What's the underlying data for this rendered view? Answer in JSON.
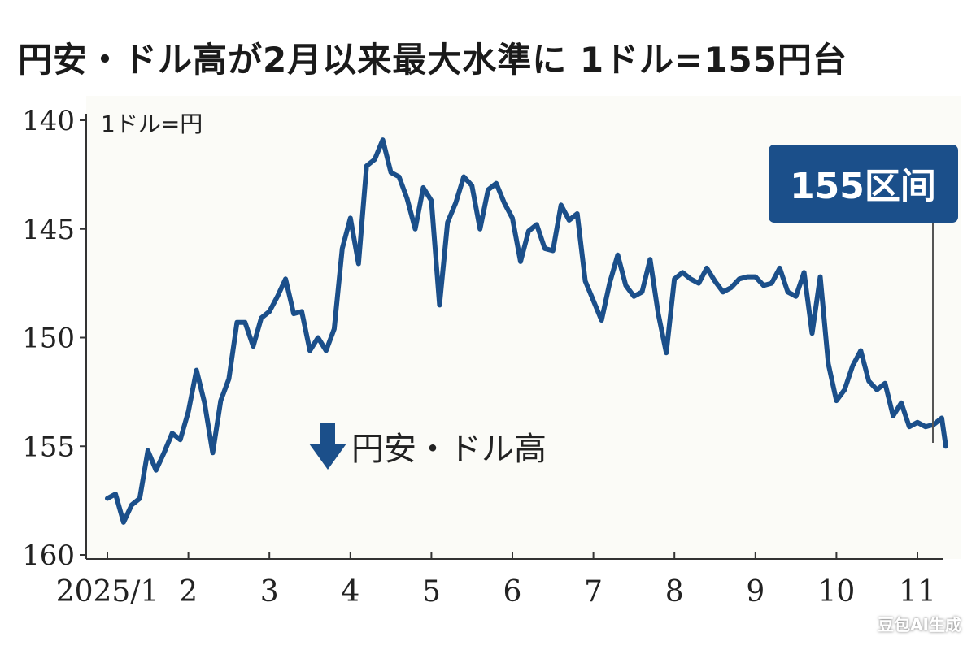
{
  "title": "円安・ドル高が2月以来最大水準に 1ドル=155円台",
  "chart_data": {
    "type": "line",
    "unit_label": "1ドル=円",
    "y_ticks": [
      "140",
      "145",
      "150",
      "155",
      "160"
    ],
    "ylim": [
      140,
      160
    ],
    "y_inverted": true,
    "x_ticks": [
      "2025/1",
      "2",
      "3",
      "4",
      "5",
      "6",
      "7",
      "8",
      "9",
      "10",
      "11"
    ],
    "callout": "155区间",
    "annotation": "円安・ドル高",
    "line_color": "#1b4f8a",
    "series": [
      {
        "x": [
          1.0,
          1.1,
          1.2,
          1.3,
          1.4,
          1.5,
          1.6,
          1.7,
          1.8,
          1.9,
          2.0,
          2.1,
          2.2,
          2.3,
          2.4,
          2.5,
          2.6,
          2.7,
          2.8,
          2.9,
          3.0,
          3.1,
          3.2,
          3.3,
          3.4,
          3.5,
          3.6,
          3.7,
          3.8,
          3.9,
          4.0,
          4.1,
          4.2,
          4.3,
          4.4,
          4.5,
          4.6,
          4.7,
          4.8,
          4.9,
          5.0,
          5.1,
          5.2,
          5.3,
          5.4,
          5.5,
          5.6,
          5.7,
          5.8,
          5.9,
          6.0,
          6.1,
          6.2,
          6.3,
          6.4,
          6.5,
          6.6,
          6.7,
          6.8,
          6.9,
          7.0,
          7.1,
          7.2,
          7.3,
          7.4,
          7.5,
          7.6,
          7.7,
          7.8,
          7.9,
          8.0,
          8.1,
          8.2,
          8.3,
          8.4,
          8.5,
          8.6,
          8.7,
          8.8,
          8.9,
          9.0,
          9.1,
          9.2,
          9.3,
          9.4,
          9.5,
          9.6,
          9.7,
          9.8,
          9.9,
          10.0,
          10.1,
          10.2,
          10.3,
          10.4,
          10.5,
          10.6,
          10.7,
          10.8,
          10.9,
          11.0,
          11.1,
          11.2,
          11.3,
          11.35
        ],
        "values": [
          157.4,
          157.2,
          158.5,
          157.7,
          157.4,
          155.2,
          156.1,
          155.3,
          154.4,
          154.7,
          153.4,
          151.5,
          153.0,
          155.3,
          152.9,
          151.9,
          149.3,
          149.3,
          150.4,
          149.1,
          148.8,
          148.1,
          147.3,
          148.9,
          148.8,
          150.6,
          150.0,
          150.6,
          149.6,
          145.9,
          144.5,
          146.6,
          142.1,
          141.8,
          140.9,
          142.4,
          142.6,
          143.6,
          145.0,
          143.1,
          143.7,
          148.5,
          144.7,
          143.8,
          142.6,
          143.0,
          145.0,
          143.2,
          142.9,
          143.8,
          144.5,
          146.5,
          145.1,
          144.8,
          145.9,
          146.0,
          143.9,
          144.6,
          144.3,
          147.4,
          148.3,
          149.2,
          147.5,
          146.2,
          147.6,
          148.1,
          147.9,
          146.4,
          148.9,
          150.7,
          147.3,
          147.0,
          147.3,
          147.5,
          146.8,
          147.4,
          147.9,
          147.7,
          147.3,
          147.2,
          147.2,
          147.6,
          147.5,
          146.8,
          147.9,
          148.1,
          147.0,
          149.8,
          147.2,
          151.2,
          152.9,
          152.4,
          151.3,
          150.6,
          152.0,
          152.4,
          152.1,
          153.6,
          153.0,
          154.1,
          153.9,
          154.1,
          154.0,
          153.7,
          155.0
        ]
      }
    ]
  }
}
